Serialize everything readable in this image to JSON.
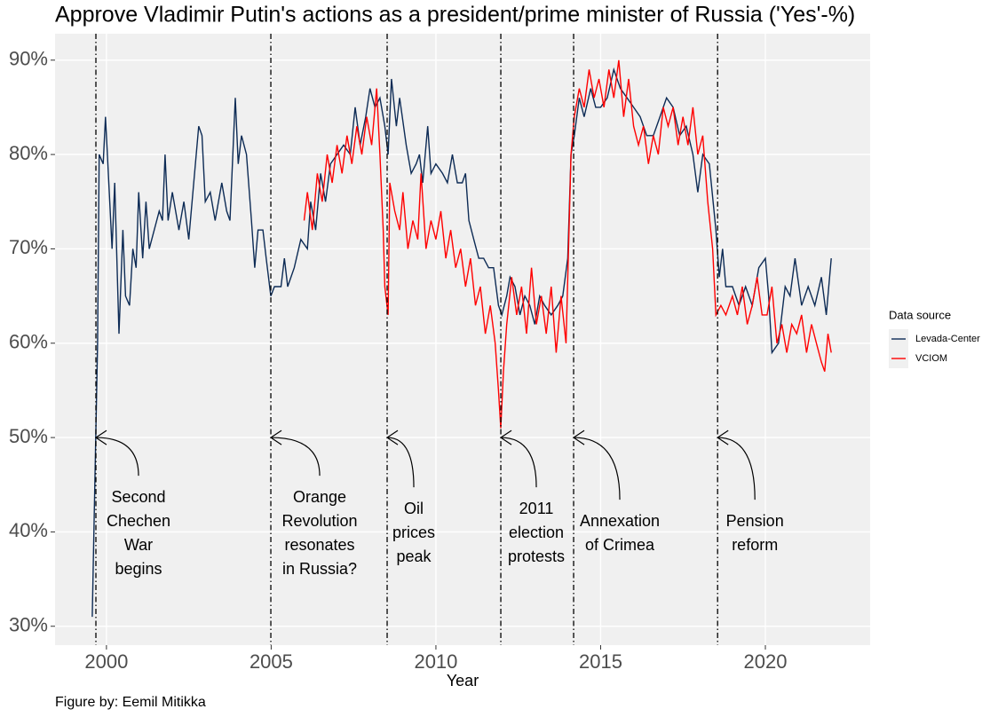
{
  "chart_data": {
    "type": "line",
    "title": "Approve Vladimir Putin's actions as a president/prime minister of Russia ('Yes'-%)",
    "x_label": "Year",
    "caption": "Figure by: Eemil Mitikka",
    "legend_title": "Data source",
    "legend_position": "right",
    "grid": true,
    "xlim": [
      1998.44,
      2023.18
    ],
    "ylim": [
      28.0,
      92.8
    ],
    "xticks": [
      2000,
      2005,
      2010,
      2015,
      2020
    ],
    "yticks": [
      {
        "value": 30,
        "label": "30%"
      },
      {
        "value": 40,
        "label": "40%"
      },
      {
        "value": 50,
        "label": "50%"
      },
      {
        "value": 60,
        "label": "60%"
      },
      {
        "value": 70,
        "label": "70%"
      },
      {
        "value": 80,
        "label": "80%"
      },
      {
        "value": 90,
        "label": "90%"
      }
    ],
    "series": [
      {
        "name": "Levada-Center",
        "color": "#0d2b55",
        "x": [
          1999.57,
          1999.73,
          1999.78,
          1999.9,
          1999.97,
          2000.1,
          2000.17,
          2000.25,
          2000.38,
          2000.5,
          2000.58,
          2000.7,
          2000.8,
          2000.9,
          2000.98,
          2001.1,
          2001.2,
          2001.3,
          2001.45,
          2001.6,
          2001.7,
          2001.78,
          2001.87,
          2002.0,
          2002.2,
          2002.35,
          2002.5,
          2002.65,
          2002.8,
          2002.9,
          2003.0,
          2003.15,
          2003.3,
          2003.5,
          2003.65,
          2003.75,
          2003.91,
          2004.0,
          2004.1,
          2004.25,
          2004.4,
          2004.5,
          2004.6,
          2004.75,
          2004.85,
          2004.99,
          2005.1,
          2005.3,
          2005.4,
          2005.5,
          2005.7,
          2005.9,
          2006.1,
          2006.2,
          2006.35,
          2006.5,
          2006.65,
          2006.8,
          2007.0,
          2007.2,
          2007.4,
          2007.55,
          2007.7,
          2007.87,
          2008.0,
          2008.15,
          2008.3,
          2008.45,
          2008.55,
          2008.65,
          2008.8,
          2008.9,
          2009.1,
          2009.25,
          2009.4,
          2009.5,
          2009.6,
          2009.75,
          2009.85,
          2010.0,
          2010.2,
          2010.35,
          2010.5,
          2010.65,
          2010.8,
          2010.9,
          2011.0,
          2011.15,
          2011.3,
          2011.45,
          2011.6,
          2011.75,
          2011.9,
          2012.0,
          2012.15,
          2012.25,
          2012.4,
          2012.55,
          2012.7,
          2012.85,
          2013.0,
          2013.15,
          2013.3,
          2013.5,
          2013.7,
          2013.85,
          2014.0,
          2014.1,
          2014.2,
          2014.35,
          2014.5,
          2014.7,
          2014.85,
          2015.0,
          2015.2,
          2015.4,
          2015.6,
          2015.8,
          2016.0,
          2016.2,
          2016.4,
          2016.6,
          2016.8,
          2017.0,
          2017.2,
          2017.4,
          2017.6,
          2017.8,
          2017.95,
          2018.1,
          2018.3,
          2018.5,
          2018.6,
          2018.7,
          2018.8,
          2019.0,
          2019.2,
          2019.4,
          2019.6,
          2019.8,
          2020.0,
          2020.1,
          2020.2,
          2020.4,
          2020.6,
          2020.75,
          2020.9,
          2021.1,
          2021.3,
          2021.5,
          2021.7,
          2021.85,
          2022.0
        ],
        "values": [
          31,
          60,
          80,
          79,
          84,
          75,
          70,
          77,
          61,
          72,
          65,
          64,
          70,
          68,
          76,
          69,
          75,
          70,
          72,
          74,
          73,
          80,
          73,
          76,
          72,
          75,
          71,
          77,
          83,
          82,
          75,
          76,
          73,
          77,
          74,
          73,
          86,
          79,
          82,
          80,
          73,
          68,
          72,
          72,
          69,
          65,
          66,
          66,
          69,
          66,
          68,
          71,
          70,
          75,
          72,
          78,
          75,
          79,
          80,
          81,
          80,
          85,
          81,
          84,
          87,
          85,
          86,
          83,
          80,
          88,
          83,
          86,
          81,
          78,
          79,
          80,
          77,
          83,
          78,
          79,
          78,
          77,
          80,
          77,
          77,
          78,
          73,
          71,
          69,
          69,
          68,
          68,
          64,
          63,
          65,
          67,
          66,
          63,
          65,
          64,
          62,
          65,
          64,
          63,
          64,
          65,
          69,
          80,
          82,
          86,
          84,
          87,
          85,
          85,
          86,
          89,
          87,
          86,
          85,
          84,
          82,
          82,
          84,
          86,
          85,
          82,
          83,
          80,
          76,
          80,
          79,
          72,
          67,
          70,
          66,
          66,
          64,
          66,
          64,
          68,
          69,
          65,
          59,
          60,
          66,
          65,
          69,
          64,
          66,
          64,
          67,
          63,
          69
        ]
      },
      {
        "name": "VCIOM",
        "color": "#ff0000",
        "x": [
          2006.0,
          2006.1,
          2006.25,
          2006.4,
          2006.55,
          2006.7,
          2006.85,
          2007.0,
          2007.15,
          2007.3,
          2007.45,
          2007.6,
          2007.75,
          2007.9,
          2008.05,
          2008.2,
          2008.3,
          2008.4,
          2008.45,
          2008.55,
          2008.6,
          2008.75,
          2008.9,
          2009.0,
          2009.15,
          2009.3,
          2009.45,
          2009.55,
          2009.7,
          2009.85,
          2010.0,
          2010.15,
          2010.3,
          2010.45,
          2010.6,
          2010.75,
          2010.9,
          2011.05,
          2011.2,
          2011.35,
          2011.5,
          2011.65,
          2011.8,
          2011.9,
          2011.97,
          2012.05,
          2012.15,
          2012.3,
          2012.45,
          2012.6,
          2012.75,
          2012.9,
          2013.05,
          2013.2,
          2013.35,
          2013.5,
          2013.65,
          2013.8,
          2013.95,
          2014.1,
          2014.2,
          2014.35,
          2014.5,
          2014.65,
          2014.8,
          2014.95,
          2015.1,
          2015.25,
          2015.4,
          2015.55,
          2015.7,
          2015.85,
          2016.0,
          2016.15,
          2016.3,
          2016.45,
          2016.6,
          2016.75,
          2016.9,
          2017.05,
          2017.2,
          2017.35,
          2017.5,
          2017.65,
          2017.8,
          2017.95,
          2018.1,
          2018.25,
          2018.4,
          2018.5,
          2018.65,
          2018.8,
          2019.0,
          2019.15,
          2019.3,
          2019.45,
          2019.6,
          2019.75,
          2019.9,
          2020.05,
          2020.2,
          2020.35,
          2020.5,
          2020.65,
          2020.8,
          2020.95,
          2021.1,
          2021.25,
          2021.4,
          2021.55,
          2021.7,
          2021.8,
          2021.9,
          2022.0
        ],
        "values": [
          73,
          76,
          72,
          78,
          75,
          80,
          77,
          81,
          78,
          82,
          79,
          83,
          80,
          84,
          81,
          87,
          80,
          72,
          66,
          63,
          77,
          74,
          72,
          76,
          70,
          73,
          71,
          78,
          70,
          73,
          71,
          74,
          69,
          72,
          68,
          70,
          66,
          69,
          64,
          66,
          61,
          64,
          60,
          55,
          51,
          57,
          62,
          67,
          63,
          66,
          61,
          68,
          62,
          65,
          61,
          66,
          59,
          65,
          60,
          80,
          84,
          87,
          85,
          89,
          86,
          88,
          85,
          89,
          86,
          90,
          84,
          88,
          83,
          81,
          83,
          79,
          82,
          80,
          85,
          83,
          85,
          81,
          84,
          81,
          85,
          80,
          82,
          75,
          70,
          63,
          64,
          63,
          65,
          63,
          66,
          62,
          64,
          67,
          63,
          63,
          66,
          60,
          62,
          59,
          62,
          61,
          63,
          59,
          62,
          60,
          58,
          57,
          61,
          59
        ]
      }
    ],
    "annotations": [
      {
        "x": 1999.68,
        "y": 50,
        "lines": [
          "Second",
          "Chechen",
          "War",
          "begins"
        ]
      },
      {
        "x": 2004.99,
        "y": 50,
        "lines": [
          "Orange",
          "Revolution",
          "resonates",
          "in Russia?"
        ]
      },
      {
        "x": 2008.52,
        "y": 50,
        "lines": [
          "Oil",
          "prices",
          "peak"
        ]
      },
      {
        "x": 2011.97,
        "y": 50,
        "lines": [
          "2011",
          "election",
          "protests"
        ]
      },
      {
        "x": 2014.18,
        "y": 50,
        "lines": [
          "Annexation",
          "of Crimea"
        ]
      },
      {
        "x": 2018.55,
        "y": 50,
        "lines": [
          "Pension",
          "reform"
        ]
      }
    ]
  }
}
